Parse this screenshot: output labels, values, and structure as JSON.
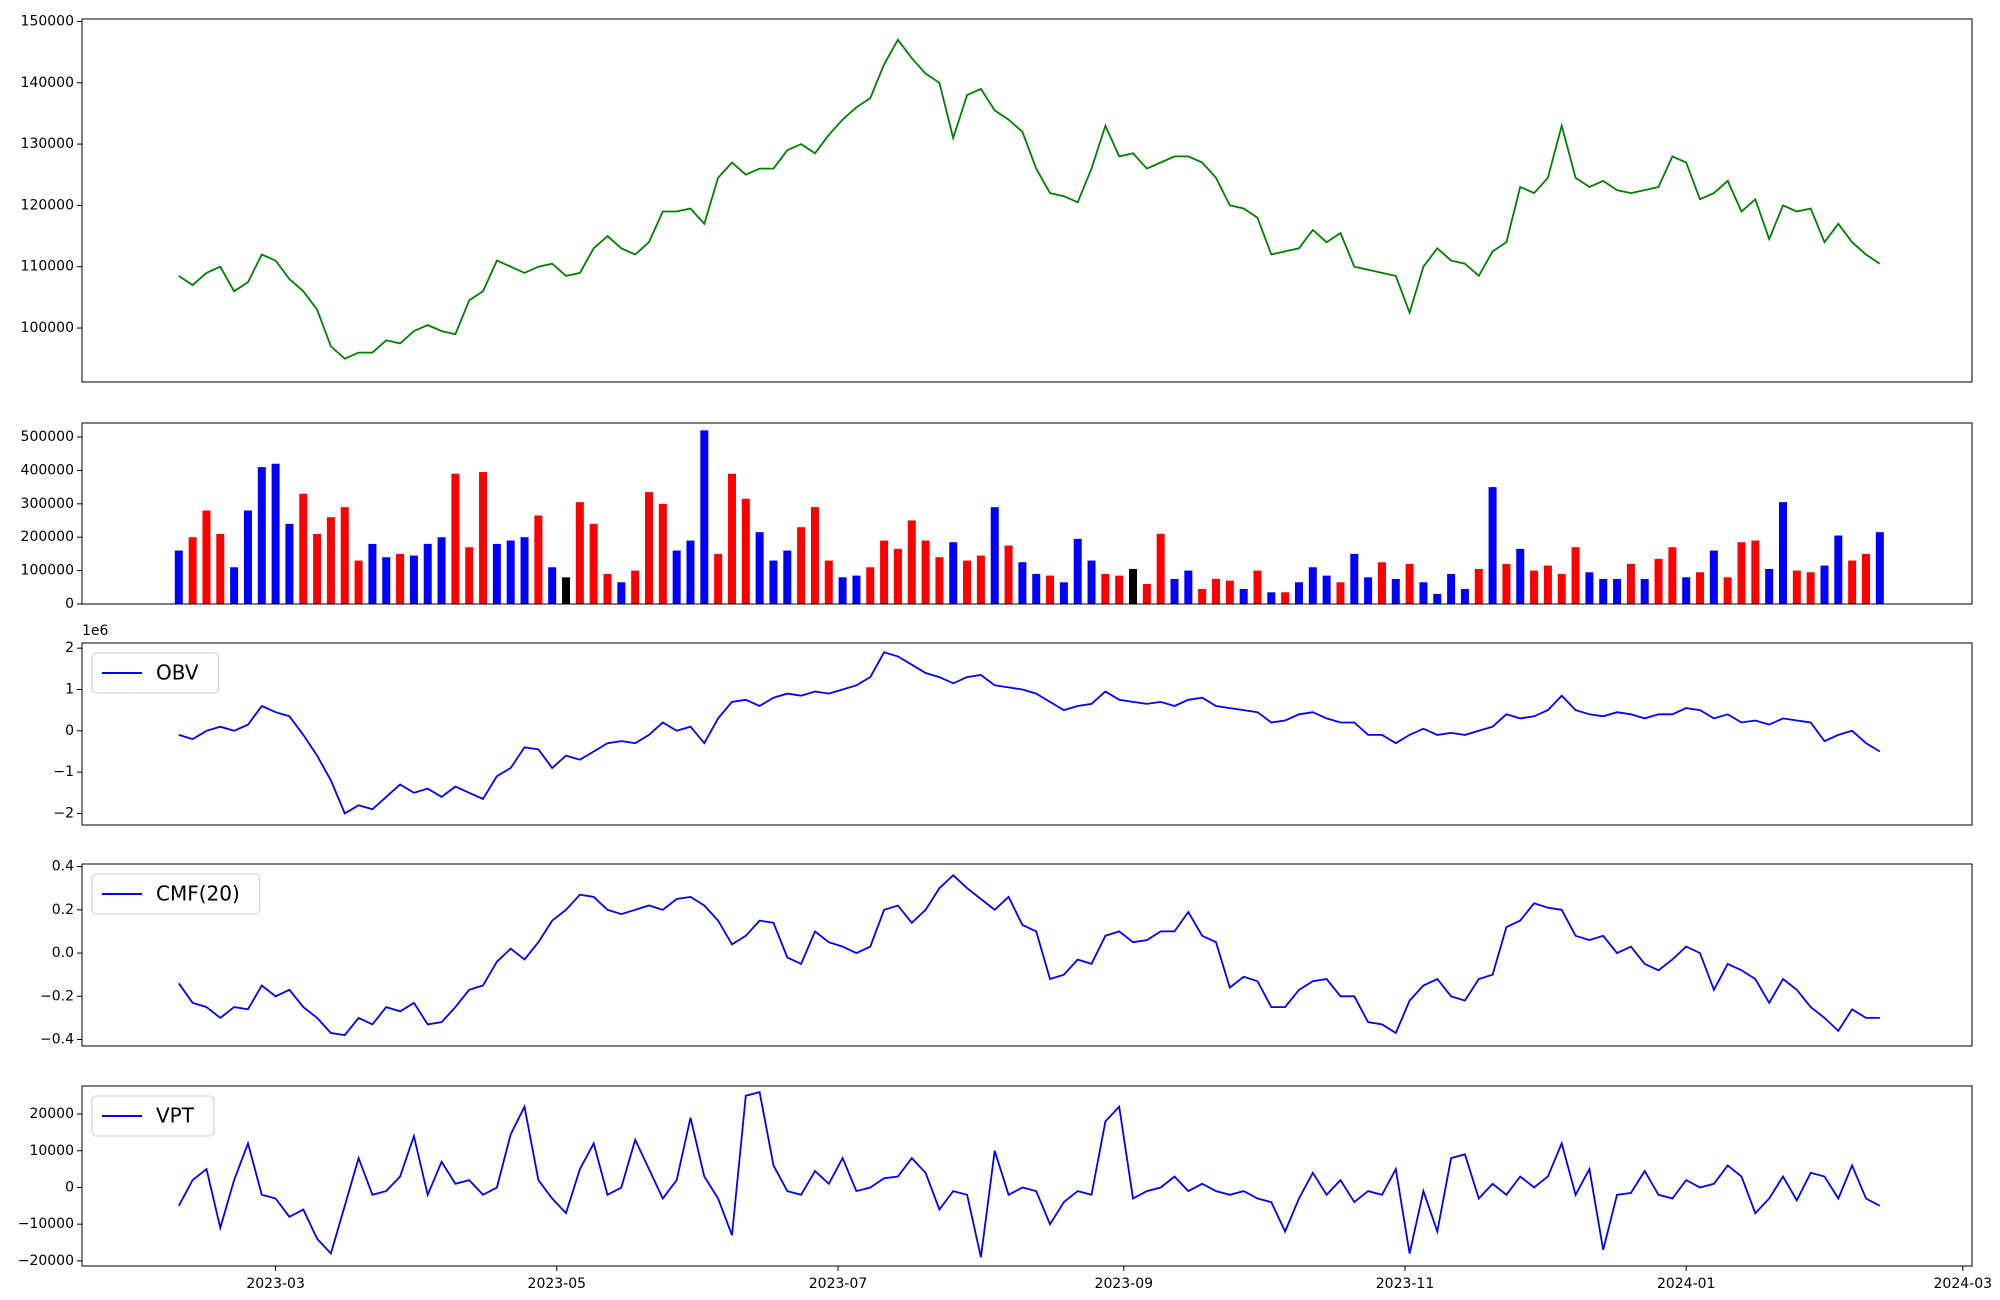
{
  "chart_data": [
    {
      "type": "line",
      "ylim": [
        91200,
        150400
      ],
      "yticks": [
        100000,
        110000,
        120000,
        130000,
        140000,
        150000
      ],
      "series": [
        {
          "color": "green",
          "values": [
            108500,
            107000,
            109000,
            110000,
            106000,
            107500,
            112000,
            111000,
            108000,
            106000,
            103000,
            97000,
            95000,
            96000,
            96000,
            98000,
            97500,
            99500,
            100500,
            99500,
            99000,
            104500,
            106000,
            111000,
            110000,
            109000,
            110000,
            110500,
            108500,
            109000,
            113000,
            115000,
            113000,
            112000,
            114000,
            119000,
            119000,
            119500,
            117000,
            124500,
            127000,
            125000,
            126000,
            126000,
            129000,
            130000,
            128500,
            131500,
            134000,
            136000,
            137500,
            143000,
            147000,
            144000,
            141500,
            140000,
            131000,
            138000,
            139000,
            135500,
            134000,
            132000,
            126000,
            122000,
            121500,
            120500,
            126000,
            133000,
            128000,
            128500,
            126000,
            127000,
            128000,
            128000,
            127000,
            124500,
            120000,
            119500,
            118000,
            112000,
            112500,
            113000,
            116000,
            114000,
            115500,
            110000,
            109500,
            109000,
            108500,
            102500,
            110000,
            113000,
            111000,
            110500,
            108500,
            112500,
            114000,
            123000,
            122000,
            124500,
            133000,
            124500,
            123000,
            124000,
            122500,
            122000,
            122500,
            123000,
            128000,
            127000,
            121000,
            122000,
            124000,
            119000,
            121000,
            114500,
            120000,
            119000,
            119500,
            114000,
            117000,
            114000,
            112000,
            110500
          ]
        }
      ]
    },
    {
      "type": "bar",
      "ylim": [
        0,
        542000
      ],
      "yticks": [
        0,
        100000,
        200000,
        300000,
        400000,
        500000
      ],
      "values": [
        160000,
        200000,
        280000,
        210000,
        110000,
        280000,
        410000,
        420000,
        240000,
        330000,
        210000,
        260000,
        290000,
        130000,
        180000,
        140000,
        150000,
        145000,
        180000,
        200000,
        390000,
        170000,
        395000,
        180000,
        190000,
        200000,
        265000,
        110000,
        80000,
        305000,
        240000,
        90000,
        65000,
        100000,
        335000,
        300000,
        160000,
        190000,
        520000,
        150000,
        390000,
        315000,
        215000,
        130000,
        160000,
        230000,
        290000,
        130000,
        80000,
        85000,
        110000,
        190000,
        165000,
        250000,
        190000,
        140000,
        185000,
        130000,
        145000,
        290000,
        175000,
        125000,
        90000,
        85000,
        65000,
        195000,
        130000,
        90000,
        85000,
        105000,
        60000,
        210000,
        75000,
        100000,
        45000,
        75000,
        70000,
        45000,
        100000,
        35000,
        35000,
        65000,
        110000,
        85000,
        65000,
        150000,
        80000,
        125000,
        75000,
        120000,
        65000,
        30000,
        90000,
        45000,
        105000,
        350000,
        120000,
        165000,
        100000,
        115000,
        90000,
        170000,
        95000,
        75000,
        75000,
        120000,
        75000,
        135000,
        170000,
        80000,
        95000,
        160000,
        80000,
        185000,
        190000,
        105000,
        305000,
        100000,
        95000,
        115000,
        205000,
        130000,
        150000,
        215000
      ],
      "colors": [
        "blue",
        "red",
        "red",
        "red",
        "blue",
        "blue",
        "blue",
        "blue",
        "blue",
        "red",
        "red",
        "red",
        "red",
        "red",
        "blue",
        "blue",
        "red",
        "blue",
        "blue",
        "blue",
        "red",
        "red",
        "red",
        "blue",
        "blue",
        "blue",
        "red",
        "blue",
        "black",
        "red",
        "red",
        "red",
        "blue",
        "red",
        "red",
        "red",
        "blue",
        "blue",
        "blue",
        "red",
        "red",
        "red",
        "blue",
        "blue",
        "blue",
        "red",
        "red",
        "red",
        "blue",
        "blue",
        "red",
        "red",
        "red",
        "red",
        "red",
        "red",
        "blue",
        "red",
        "red",
        "blue",
        "red",
        "blue",
        "blue",
        "red",
        "blue",
        "blue",
        "blue",
        "red",
        "red",
        "black",
        "red",
        "red",
        "blue",
        "blue",
        "red",
        "red",
        "red",
        "blue",
        "red",
        "blue",
        "red",
        "blue",
        "blue",
        "blue",
        "red",
        "blue",
        "blue",
        "red",
        "blue",
        "red",
        "blue",
        "blue",
        "blue",
        "blue",
        "red",
        "blue",
        "red",
        "blue",
        "red",
        "red",
        "red",
        "red",
        "blue",
        "blue",
        "blue",
        "red",
        "blue",
        "red",
        "red",
        "blue",
        "red",
        "blue",
        "red",
        "red",
        "red",
        "blue",
        "blue",
        "red",
        "red",
        "blue",
        "blue",
        "red",
        "red",
        "blue"
      ]
    },
    {
      "type": "line",
      "ylim": [
        -2.28,
        2.125
      ],
      "offset_label": "1e6",
      "legend": "upper left",
      "yticks": [
        {
          "value": -2,
          "label": "−2"
        },
        {
          "value": -1,
          "label": "−1"
        },
        0,
        1,
        2
      ],
      "series": [
        {
          "name": "OBV",
          "color": "blue",
          "values": [
            -0.1,
            -0.2,
            0.0,
            0.1,
            0.0,
            0.15,
            0.6,
            0.45,
            0.35,
            -0.1,
            -0.6,
            -1.2,
            -2.0,
            -1.8,
            -1.9,
            -1.6,
            -1.3,
            -1.5,
            -1.4,
            -1.6,
            -1.35,
            -1.5,
            -1.65,
            -1.1,
            -0.9,
            -0.4,
            -0.45,
            -0.9,
            -0.6,
            -0.7,
            -0.5,
            -0.3,
            -0.25,
            -0.3,
            -0.1,
            0.2,
            0.0,
            0.1,
            -0.3,
            0.3,
            0.7,
            0.75,
            0.6,
            0.8,
            0.9,
            0.85,
            0.95,
            0.9,
            1.0,
            1.1,
            1.3,
            1.9,
            1.8,
            1.6,
            1.4,
            1.3,
            1.15,
            1.3,
            1.35,
            1.1,
            1.05,
            1.0,
            0.9,
            0.7,
            0.5,
            0.6,
            0.65,
            0.95,
            0.75,
            0.7,
            0.65,
            0.7,
            0.6,
            0.75,
            0.8,
            0.6,
            0.55,
            0.5,
            0.45,
            0.2,
            0.25,
            0.4,
            0.45,
            0.3,
            0.2,
            0.2,
            -0.1,
            -0.1,
            -0.3,
            -0.1,
            0.05,
            -0.1,
            -0.05,
            -0.1,
            0.0,
            0.1,
            0.4,
            0.3,
            0.35,
            0.5,
            0.85,
            0.5,
            0.4,
            0.35,
            0.45,
            0.4,
            0.3,
            0.4,
            0.4,
            0.55,
            0.5,
            0.3,
            0.4,
            0.2,
            0.25,
            0.15,
            0.3,
            0.25,
            0.2,
            -0.25,
            -0.1,
            0.0,
            -0.3,
            -0.5
          ]
        }
      ]
    },
    {
      "type": "line",
      "ylim": [
        -0.43,
        0.412
      ],
      "legend": "upper left",
      "yticks": [
        {
          "value": -0.4,
          "label": "−0.4"
        },
        {
          "value": -0.2,
          "label": "−0.2"
        },
        {
          "value": 0,
          "label": "0.0"
        },
        0.2,
        0.4
      ],
      "series": [
        {
          "name": "CMF(20)",
          "color": "blue",
          "values": [
            -0.14,
            -0.23,
            -0.25,
            -0.3,
            -0.25,
            -0.26,
            -0.15,
            -0.2,
            -0.17,
            -0.25,
            -0.3,
            -0.37,
            -0.38,
            -0.3,
            -0.33,
            -0.25,
            -0.27,
            -0.23,
            -0.33,
            -0.32,
            -0.25,
            -0.17,
            -0.15,
            -0.04,
            0.02,
            -0.03,
            0.05,
            0.15,
            0.2,
            0.27,
            0.26,
            0.2,
            0.18,
            0.2,
            0.22,
            0.2,
            0.25,
            0.26,
            0.22,
            0.15,
            0.04,
            0.08,
            0.15,
            0.14,
            -0.02,
            -0.05,
            0.1,
            0.05,
            0.03,
            0.0,
            0.03,
            0.2,
            0.22,
            0.14,
            0.2,
            0.3,
            0.36,
            0.3,
            0.25,
            0.2,
            0.26,
            0.13,
            0.1,
            -0.12,
            -0.1,
            -0.03,
            -0.05,
            0.08,
            0.1,
            0.05,
            0.06,
            0.1,
            0.1,
            0.19,
            0.08,
            0.05,
            -0.16,
            -0.11,
            -0.13,
            -0.25,
            -0.25,
            -0.17,
            -0.13,
            -0.12,
            -0.2,
            -0.2,
            -0.32,
            -0.33,
            -0.37,
            -0.22,
            -0.15,
            -0.12,
            -0.2,
            -0.22,
            -0.12,
            -0.1,
            0.12,
            0.15,
            0.23,
            0.21,
            0.2,
            0.08,
            0.06,
            0.08,
            0.0,
            0.03,
            -0.05,
            -0.08,
            -0.03,
            0.03,
            0.0,
            -0.17,
            -0.05,
            -0.08,
            -0.12,
            -0.23,
            -0.12,
            -0.17,
            -0.25,
            -0.3,
            -0.36,
            -0.26,
            -0.3,
            -0.3
          ]
        }
      ]
    },
    {
      "type": "line",
      "ylim": [
        -21400,
        27650
      ],
      "legend": "upper left",
      "yticks": [
        {
          "value": -20000,
          "label": "−20000"
        },
        {
          "value": -10000,
          "label": "−10000"
        },
        0,
        10000,
        20000
      ],
      "xlim": [
        "2023-01-18",
        "2024-03-03"
      ],
      "xticks": [
        {
          "value": "2023-03-01",
          "label": "2023-03"
        },
        {
          "value": "2023-05-01",
          "label": "2023-05"
        },
        {
          "value": "2023-07-01",
          "label": "2023-07"
        },
        {
          "value": "2023-09-01",
          "label": "2023-09"
        },
        {
          "value": "2023-11-01",
          "label": "2023-11"
        },
        {
          "value": "2024-01-01",
          "label": "2024-01"
        },
        {
          "value": "2024-03-01",
          "label": "2024-03"
        }
      ],
      "x": [
        "2023-02-08",
        "2023-02-11",
        "2023-02-14",
        "2023-02-17",
        "2023-02-20",
        "2023-02-23",
        "2023-02-26",
        "2023-03-01",
        "2023-03-04",
        "2023-03-07",
        "2023-03-10",
        "2023-03-13",
        "2023-03-16",
        "2023-03-19",
        "2023-03-22",
        "2023-03-25",
        "2023-03-28",
        "2023-03-31",
        "2023-04-03",
        "2023-04-06",
        "2023-04-09",
        "2023-04-12",
        "2023-04-15",
        "2023-04-18",
        "2023-04-21",
        "2023-04-24",
        "2023-04-27",
        "2023-04-30",
        "2023-05-03",
        "2023-05-06",
        "2023-05-09",
        "2023-05-12",
        "2023-05-15",
        "2023-05-18",
        "2023-05-21",
        "2023-05-24",
        "2023-05-27",
        "2023-05-30",
        "2023-06-02",
        "2023-06-05",
        "2023-06-08",
        "2023-06-11",
        "2023-06-14",
        "2023-06-17",
        "2023-06-20",
        "2023-06-23",
        "2023-06-26",
        "2023-06-29",
        "2023-07-02",
        "2023-07-05",
        "2023-07-08",
        "2023-07-11",
        "2023-07-14",
        "2023-07-17",
        "2023-07-20",
        "2023-07-23",
        "2023-07-26",
        "2023-07-29",
        "2023-08-01",
        "2023-08-04",
        "2023-08-07",
        "2023-08-10",
        "2023-08-13",
        "2023-08-16",
        "2023-08-19",
        "2023-08-22",
        "2023-08-25",
        "2023-08-28",
        "2023-08-31",
        "2023-09-03",
        "2023-09-06",
        "2023-09-09",
        "2023-09-12",
        "2023-09-15",
        "2023-09-18",
        "2023-09-21",
        "2023-09-24",
        "2023-09-27",
        "2023-09-30",
        "2023-10-03",
        "2023-10-06",
        "2023-10-09",
        "2023-10-12",
        "2023-10-15",
        "2023-10-18",
        "2023-10-21",
        "2023-10-24",
        "2023-10-27",
        "2023-10-30",
        "2023-11-02",
        "2023-11-05",
        "2023-11-08",
        "2023-11-11",
        "2023-11-14",
        "2023-11-17",
        "2023-11-20",
        "2023-11-23",
        "2023-11-26",
        "2023-11-29",
        "2023-12-02",
        "2023-12-05",
        "2023-12-08",
        "2023-12-11",
        "2023-12-14",
        "2023-12-17",
        "2023-12-20",
        "2023-12-23",
        "2023-12-26",
        "2023-12-29",
        "2024-01-01",
        "2024-01-04",
        "2024-01-07",
        "2024-01-10",
        "2024-01-13",
        "2024-01-16",
        "2024-01-19",
        "2024-01-22",
        "2024-01-25",
        "2024-01-28",
        "2024-01-31",
        "2024-02-03",
        "2024-02-06",
        "2024-02-09",
        "2024-02-12"
      ],
      "series": [
        {
          "name": "VPT",
          "color": "blue",
          "values": [
            -5000,
            2000,
            5000,
            -11000,
            2000,
            12000,
            -2000,
            -3000,
            -8000,
            -6000,
            -14000,
            -18000,
            -5000,
            8000,
            -2000,
            -1000,
            3000,
            14000,
            -2000,
            7000,
            1000,
            2000,
            -2000,
            0,
            14500,
            22000,
            2000,
            -3000,
            -7000,
            5000,
            12000,
            -2000,
            0,
            13000,
            5000,
            -3000,
            2000,
            19000,
            3000,
            -3000,
            -13000,
            25000,
            26000,
            6000,
            -1000,
            -2000,
            4500,
            1000,
            8000,
            -1000,
            0,
            2500,
            3000,
            8000,
            4000,
            -6000,
            -1000,
            -2000,
            -19000,
            10000,
            -2000,
            0,
            -1000,
            -10000,
            -4000,
            -1000,
            -2000,
            18000,
            22000,
            -3000,
            -1000,
            0,
            3000,
            -1000,
            1000,
            -1000,
            -2000,
            -1000,
            -3000,
            -4000,
            -12000,
            -3000,
            4000,
            -2000,
            2000,
            -4000,
            -1000,
            -2000,
            5000,
            -18000,
            -1000,
            -12000,
            8000,
            9000,
            -3000,
            1000,
            -2000,
            3000,
            0,
            3000,
            12000,
            -2000,
            5000,
            -17000,
            -2000,
            -1500,
            4500,
            -2000,
            -3000,
            2000,
            0,
            1000,
            6000,
            3000,
            -7000,
            -3000,
            3000,
            -3500,
            4000,
            3000,
            -3000,
            6000,
            -3000,
            -5000
          ]
        }
      ]
    }
  ]
}
